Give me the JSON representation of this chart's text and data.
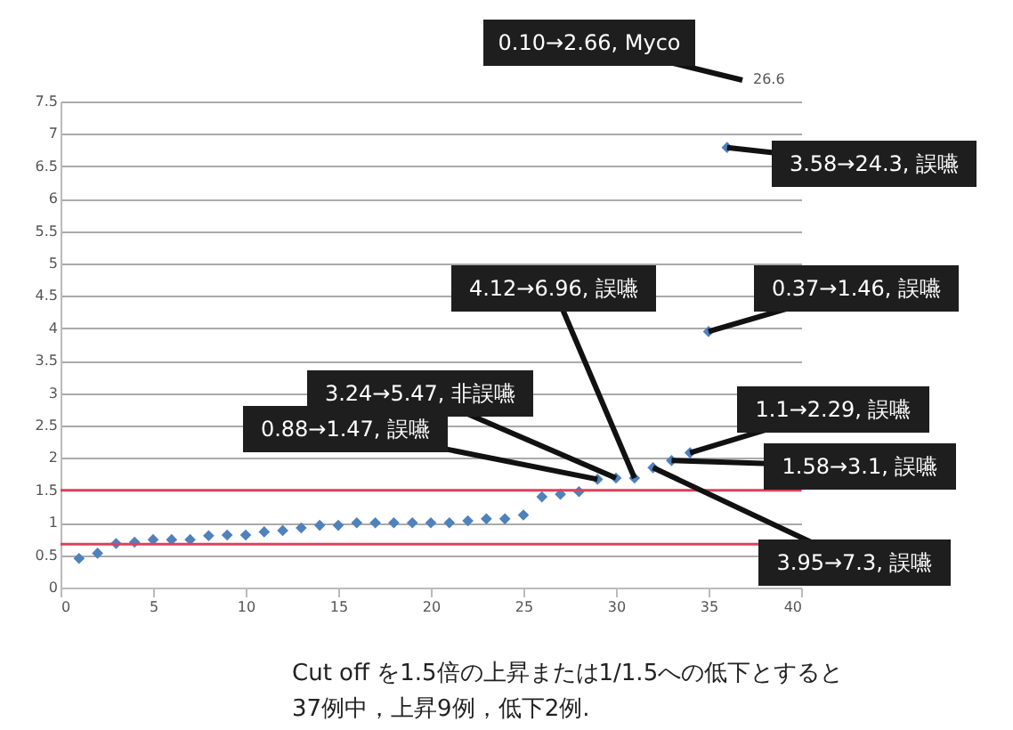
{
  "chart_data": {
    "type": "scatter",
    "x": [
      1,
      2,
      3,
      4,
      5,
      6,
      7,
      8,
      9,
      10,
      11,
      12,
      13,
      14,
      15,
      16,
      17,
      18,
      19,
      20,
      21,
      22,
      23,
      24,
      25,
      26,
      27,
      28,
      29,
      30,
      31,
      32,
      33,
      34,
      35,
      36
    ],
    "series": [
      {
        "color": "#4f81bd",
        "values": [
          0.45,
          0.53,
          0.68,
          0.7,
          0.74,
          0.74,
          0.74,
          0.8,
          0.81,
          0.81,
          0.86,
          0.88,
          0.92,
          0.96,
          0.96,
          1.0,
          1.0,
          1.0,
          1.0,
          1.0,
          1.0,
          1.03,
          1.06,
          1.06,
          1.12,
          1.4,
          1.44,
          1.48,
          1.67,
          1.69,
          1.69,
          1.85,
          1.96,
          2.08,
          3.95,
          6.79
        ]
      }
    ],
    "marker": "diamond",
    "xlim": [
      0,
      40
    ],
    "xticks": [
      0,
      5,
      10,
      15,
      20,
      25,
      30,
      35,
      40
    ],
    "ylim": [
      0,
      7.5
    ],
    "yticks": [
      0,
      0.5,
      1,
      1.5,
      2,
      2.5,
      3,
      3.5,
      4,
      4.5,
      5,
      5.5,
      6,
      6.5,
      7,
      7.5
    ],
    "grid": "y",
    "ref_lines": [
      {
        "axis": "y",
        "value": 1.5,
        "color": "#e0405a"
      },
      {
        "axis": "y",
        "value": 0.67,
        "color": "#e0405a"
      }
    ],
    "annotations": [
      "0.10→2.66, Myco",
      "26.6",
      {
        "text": "3.58→24.3, 誤嚥",
        "x": 36,
        "y": 6.79
      },
      {
        "text": "4.12→6.96, 誤嚥",
        "x": 31,
        "y": 1.69
      },
      {
        "text": "0.37→1.46, 誤嚥",
        "x": 35,
        "y": 3.95
      },
      {
        "text": "3.24→5.47, 非誤嚥",
        "x": 30,
        "y": 1.69
      },
      {
        "text": "1.1→2.29, 誤嚥",
        "x": 34,
        "y": 2.08
      },
      {
        "text": "0.88→1.47, 誤嚥",
        "x": 29,
        "y": 1.67
      },
      {
        "text": "1.58→3.1, 誤嚥",
        "x": 33,
        "y": 1.96
      },
      {
        "text": "3.95→7.3, 誤嚥",
        "x": 32,
        "y": 1.85
      },
      "Cut off を1.5倍の上昇または1/1.5への低下とすると",
      "37例中，上昇9例，低下2例."
    ]
  }
}
